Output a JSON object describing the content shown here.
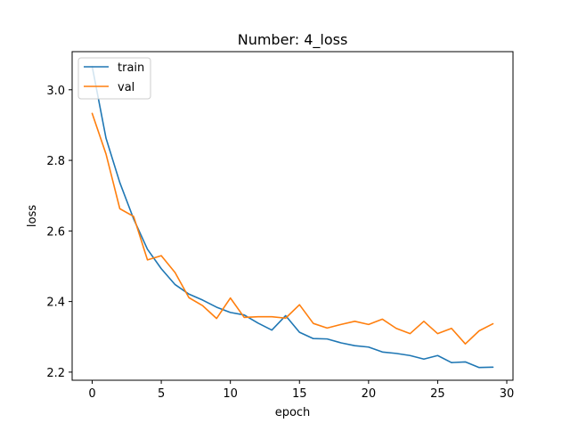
{
  "chart_data": {
    "type": "line",
    "title": "Number: 4_loss",
    "xlabel": "epoch",
    "ylabel": "loss",
    "xlim": [
      -1.45,
      30.45
    ],
    "ylim": [
      2.177,
      3.108
    ],
    "xticks": [
      0,
      5,
      10,
      15,
      20,
      25,
      30
    ],
    "yticks": [
      2.2,
      2.4,
      2.6,
      2.8,
      3.0
    ],
    "ytick_labels": [
      "2.2",
      "2.4",
      "2.6",
      "2.8",
      "3.0"
    ],
    "grid": false,
    "legend_position": "top-left",
    "x": [
      0,
      1,
      2,
      3,
      4,
      5,
      6,
      7,
      8,
      9,
      10,
      11,
      12,
      13,
      14,
      15,
      16,
      17,
      18,
      19,
      20,
      21,
      22,
      23,
      24,
      25,
      26,
      27,
      28,
      29
    ],
    "series": [
      {
        "name": "train",
        "color": "#1f77b4",
        "values": [
          3.066,
          2.863,
          2.737,
          2.634,
          2.548,
          2.493,
          2.448,
          2.421,
          2.404,
          2.384,
          2.369,
          2.362,
          2.339,
          2.319,
          2.36,
          2.313,
          2.295,
          2.294,
          2.283,
          2.275,
          2.271,
          2.257,
          2.253,
          2.247,
          2.237,
          2.247,
          2.227,
          2.229,
          2.213,
          2.214
        ]
      },
      {
        "name": "val",
        "color": "#ff7f0e",
        "values": [
          2.933,
          2.818,
          2.663,
          2.641,
          2.518,
          2.53,
          2.482,
          2.411,
          2.388,
          2.352,
          2.41,
          2.355,
          2.357,
          2.357,
          2.353,
          2.391,
          2.338,
          2.325,
          2.335,
          2.344,
          2.335,
          2.35,
          2.324,
          2.309,
          2.344,
          2.309,
          2.324,
          2.28,
          2.317,
          2.337
        ]
      }
    ]
  }
}
